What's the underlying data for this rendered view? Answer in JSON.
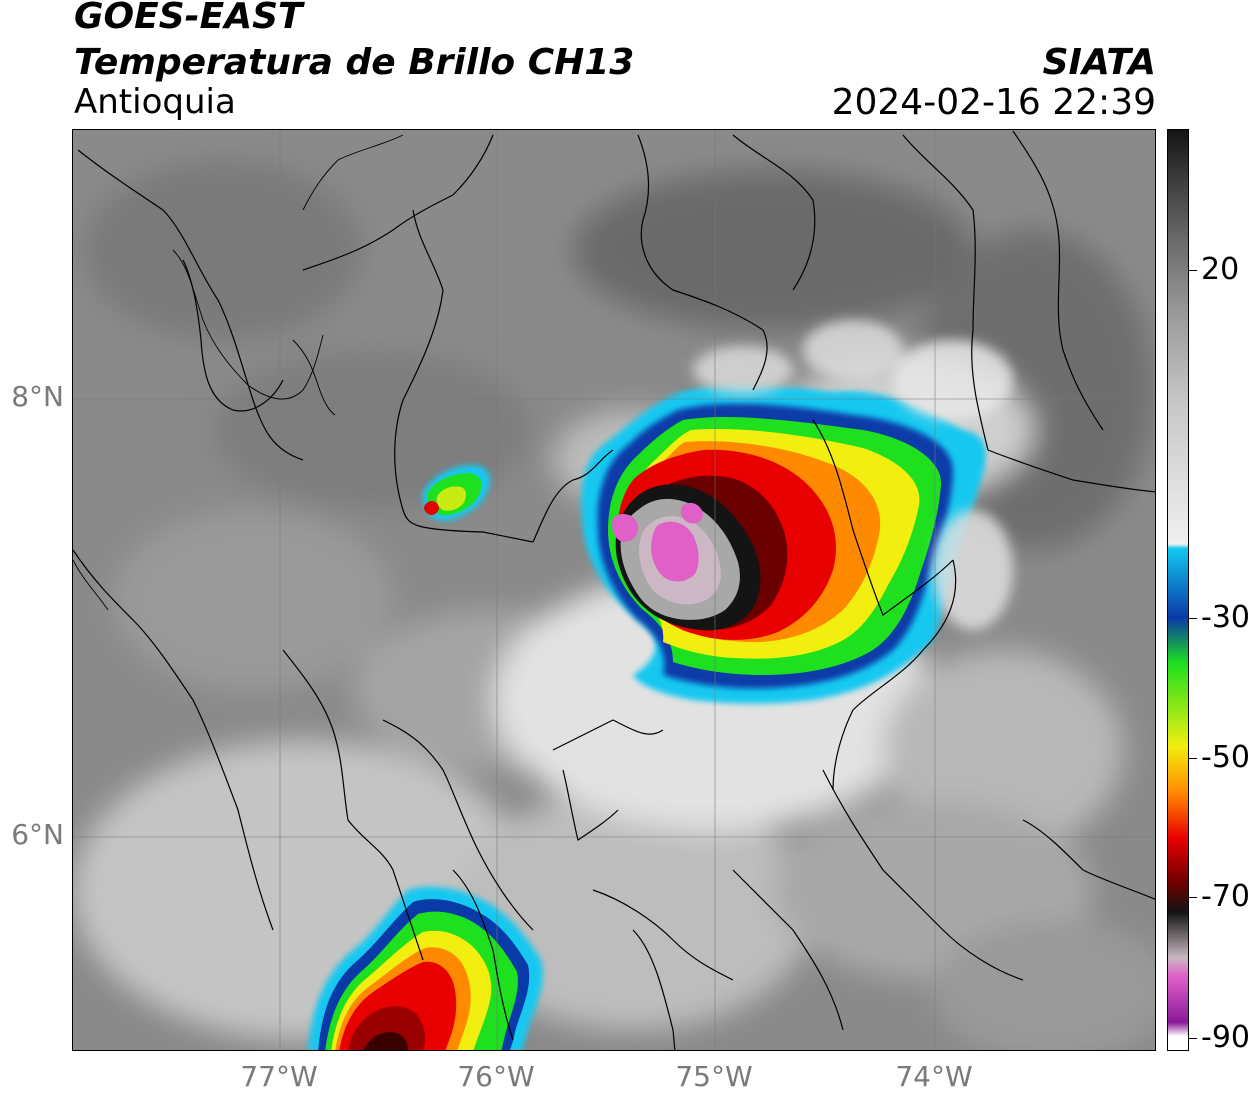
{
  "header": {
    "satellite": "GOES-EAST",
    "product": "Temperatura de Brillo CH13",
    "region": "Antioquia",
    "organization": "SIATA",
    "timestamp": "2024-02-16 22:39"
  },
  "map": {
    "lat_labels": [
      "8°N",
      "6°N"
    ],
    "lon_labels": [
      "77°W",
      "76°W",
      "75°W",
      "74°W"
    ],
    "background_color": "#8a8a8a",
    "cloud_colors": {
      "warm": "#6e6e6e",
      "white_cloud": "#e6e6e6",
      "cyan": "#12c8f0",
      "blue": "#0a3aa8",
      "green": "#1ee01e",
      "yellow": "#f2ee10",
      "orange": "#ff8a00",
      "red": "#e80000",
      "dark_red": "#6a0000",
      "black": "#141414",
      "gray_core": "#a8a8a8",
      "pink": "#e060c8"
    }
  },
  "colorbar": {
    "labels": [
      "20",
      "-30",
      "-50",
      "-70",
      "-90"
    ],
    "stops": [
      "#141414",
      "#3a3a3a",
      "#6a6a6a",
      "#9a9a9a",
      "#c8c8c8",
      "#f0f0f0",
      "#12c8f0",
      "#0a3aa8",
      "#1ee01e",
      "#f2ee10",
      "#ff8a00",
      "#e80000",
      "#6a0000",
      "#141414",
      "#c8b8c0",
      "#e060c8",
      "#8a1a9a",
      "#ffffff"
    ]
  }
}
